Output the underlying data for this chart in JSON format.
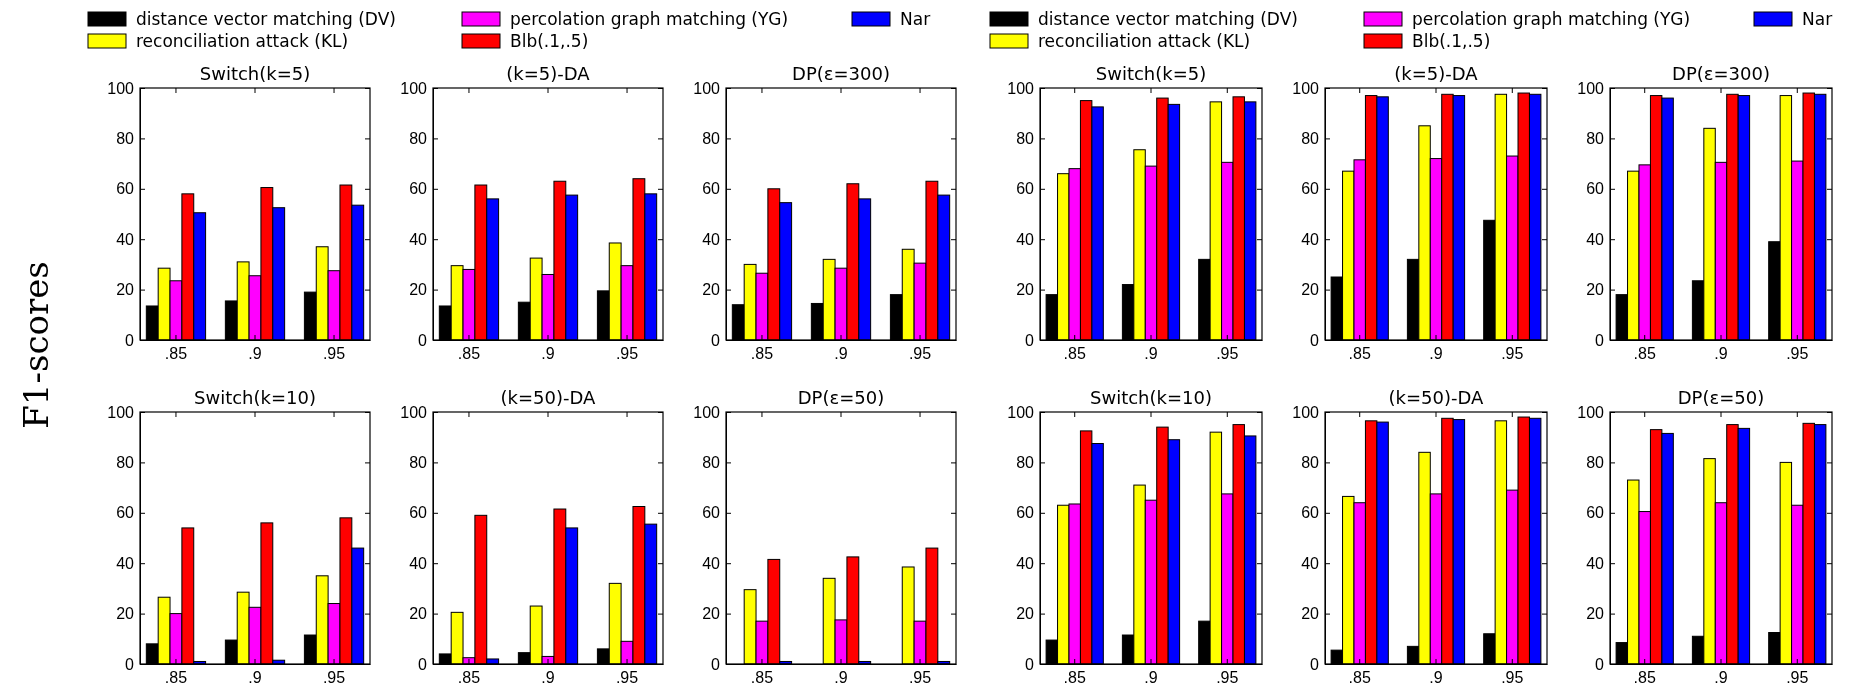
{
  "chart_data": [
    {
      "type": "bar",
      "title": "Switch(k=5)",
      "ylabel": "F1-scores",
      "categories": [
        ".85",
        ".9",
        ".95"
      ],
      "ylim": [
        0,
        100
      ],
      "yticks": [
        0,
        20,
        40,
        60,
        80,
        100
      ],
      "legend": "top",
      "series": [
        {
          "name": "distance vector matching (DV)",
          "color": "#000000",
          "values": [
            13.5,
            15.5,
            19
          ]
        },
        {
          "name": "reconciliation attack (KL)",
          "color": "#ffff00",
          "values": [
            28.5,
            31,
            37
          ]
        },
        {
          "name": "percolation graph matching (YG)",
          "color": "#ff00ff",
          "values": [
            23.5,
            25.5,
            27.5
          ]
        },
        {
          "name": "Blb(.1,.5)",
          "color": "#ff0000",
          "values": [
            58,
            60.5,
            61.5
          ]
        },
        {
          "name": "Nar",
          "color": "#0000ff",
          "values": [
            50.5,
            52.5,
            53.5
          ]
        }
      ]
    },
    {
      "type": "bar",
      "title": "(k=5)-DA",
      "categories": [
        ".85",
        ".9",
        ".95"
      ],
      "ylim": [
        0,
        100
      ],
      "yticks": [
        0,
        20,
        40,
        60,
        80,
        100
      ],
      "series": [
        {
          "color": "#000000",
          "values": [
            13.5,
            15,
            19.5
          ]
        },
        {
          "color": "#ffff00",
          "values": [
            29.5,
            32.5,
            38.5
          ]
        },
        {
          "color": "#ff00ff",
          "values": [
            28,
            26,
            29.5
          ]
        },
        {
          "color": "#ff0000",
          "values": [
            61.5,
            63,
            64
          ]
        },
        {
          "color": "#0000ff",
          "values": [
            56,
            57.5,
            58
          ]
        }
      ]
    },
    {
      "type": "bar",
      "title": "DP(ε=300)",
      "categories": [
        ".85",
        ".9",
        ".95"
      ],
      "ylim": [
        0,
        100
      ],
      "yticks": [
        0,
        20,
        40,
        60,
        80,
        100
      ],
      "series": [
        {
          "color": "#000000",
          "values": [
            14,
            14.5,
            18
          ]
        },
        {
          "color": "#ffff00",
          "values": [
            30,
            32,
            36
          ]
        },
        {
          "color": "#ff00ff",
          "values": [
            26.5,
            28.5,
            30.5
          ]
        },
        {
          "color": "#ff0000",
          "values": [
            60,
            62,
            63
          ]
        },
        {
          "color": "#0000ff",
          "values": [
            54.5,
            56,
            57.5
          ]
        }
      ]
    },
    {
      "type": "bar",
      "title": "Switch(k=5)",
      "categories": [
        ".85",
        ".9",
        ".95"
      ],
      "ylim": [
        0,
        100
      ],
      "yticks": [
        0,
        20,
        40,
        60,
        80,
        100
      ],
      "legend": "top",
      "series": [
        {
          "name": "distance vector matching (DV)",
          "color": "#000000",
          "values": [
            18,
            22,
            32
          ]
        },
        {
          "name": "reconciliation attack (KL)",
          "color": "#ffff00",
          "values": [
            66,
            75.5,
            94.5
          ]
        },
        {
          "name": "percolation graph matching (YG)",
          "color": "#ff00ff",
          "values": [
            68,
            69,
            70.5
          ]
        },
        {
          "name": "Blb(.1,.5)",
          "color": "#ff0000",
          "values": [
            95,
            96,
            96.5
          ]
        },
        {
          "name": "Nar",
          "color": "#0000ff",
          "values": [
            92.5,
            93.5,
            94.5
          ]
        }
      ]
    },
    {
      "type": "bar",
      "title": "(k=5)-DA",
      "categories": [
        ".85",
        ".9",
        ".95"
      ],
      "ylim": [
        0,
        100
      ],
      "yticks": [
        0,
        20,
        40,
        60,
        80,
        100
      ],
      "series": [
        {
          "color": "#000000",
          "values": [
            25,
            32,
            47.5
          ]
        },
        {
          "color": "#ffff00",
          "values": [
            67,
            85,
            97.5
          ]
        },
        {
          "color": "#ff00ff",
          "values": [
            71.5,
            72,
            73
          ]
        },
        {
          "color": "#ff0000",
          "values": [
            97,
            97.5,
            98
          ]
        },
        {
          "color": "#0000ff",
          "values": [
            96.5,
            97,
            97.5
          ]
        }
      ]
    },
    {
      "type": "bar",
      "title": "DP(ε=300)",
      "categories": [
        ".85",
        ".9",
        ".95"
      ],
      "ylim": [
        0,
        100
      ],
      "yticks": [
        0,
        20,
        40,
        60,
        80,
        100
      ],
      "series": [
        {
          "color": "#000000",
          "values": [
            18,
            23.5,
            39
          ]
        },
        {
          "color": "#ffff00",
          "values": [
            67,
            84,
            97
          ]
        },
        {
          "color": "#ff00ff",
          "values": [
            69.5,
            70.5,
            71
          ]
        },
        {
          "color": "#ff0000",
          "values": [
            97,
            97.5,
            98
          ]
        },
        {
          "color": "#0000ff",
          "values": [
            96,
            97,
            97.5
          ]
        }
      ]
    },
    {
      "type": "bar",
      "title": "Switch(k=10)",
      "categories": [
        ".85",
        ".9",
        ".95"
      ],
      "ylim": [
        0,
        100
      ],
      "yticks": [
        0,
        20,
        40,
        60,
        80,
        100
      ],
      "series": [
        {
          "color": "#000000",
          "values": [
            8,
            9.5,
            11.5
          ]
        },
        {
          "color": "#ffff00",
          "values": [
            26.5,
            28.5,
            35
          ]
        },
        {
          "color": "#ff00ff",
          "values": [
            20,
            22.5,
            24
          ]
        },
        {
          "color": "#ff0000",
          "values": [
            54,
            56,
            58
          ]
        },
        {
          "color": "#0000ff",
          "values": [
            1,
            1.5,
            46
          ]
        }
      ]
    },
    {
      "type": "bar",
      "title": "(k=50)-DA",
      "categories": [
        ".85",
        ".9",
        ".95"
      ],
      "ylim": [
        0,
        100
      ],
      "yticks": [
        0,
        20,
        40,
        60,
        80,
        100
      ],
      "series": [
        {
          "color": "#000000",
          "values": [
            4,
            4.5,
            6
          ]
        },
        {
          "color": "#ffff00",
          "values": [
            20.5,
            23,
            32
          ]
        },
        {
          "color": "#ff00ff",
          "values": [
            2.5,
            3,
            9
          ]
        },
        {
          "color": "#ff0000",
          "values": [
            59,
            61.5,
            62.5
          ]
        },
        {
          "color": "#0000ff",
          "values": [
            2,
            54,
            55.5
          ]
        }
      ]
    },
    {
      "type": "bar",
      "title": "DP(ε=50)",
      "categories": [
        ".85",
        ".9",
        ".95"
      ],
      "ylim": [
        0,
        100
      ],
      "yticks": [
        0,
        20,
        40,
        60,
        80,
        100
      ],
      "series": [
        {
          "values": [
            null,
            null,
            null
          ]
        },
        {
          "color": "#ffff00",
          "values": [
            29.5,
            34,
            38.5
          ]
        },
        {
          "color": "#ff00ff",
          "values": [
            17,
            17.5,
            17
          ]
        },
        {
          "color": "#ff0000",
          "values": [
            41.5,
            42.5,
            46
          ]
        },
        {
          "color": "#0000ff",
          "values": [
            1,
            1,
            1
          ]
        }
      ]
    },
    {
      "type": "bar",
      "title": "Switch(k=10)",
      "categories": [
        ".85",
        ".9",
        ".95"
      ],
      "ylim": [
        0,
        100
      ],
      "yticks": [
        0,
        20,
        40,
        60,
        80,
        100
      ],
      "series": [
        {
          "color": "#000000",
          "values": [
            9.5,
            11.5,
            17
          ]
        },
        {
          "color": "#ffff00",
          "values": [
            63,
            71,
            92
          ]
        },
        {
          "color": "#ff00ff",
          "values": [
            63.5,
            65,
            67.5
          ]
        },
        {
          "color": "#ff0000",
          "values": [
            92.5,
            94,
            95
          ]
        },
        {
          "color": "#0000ff",
          "values": [
            87.5,
            89,
            90.5
          ]
        }
      ]
    },
    {
      "type": "bar",
      "title": "(k=50)-DA",
      "categories": [
        ".85",
        ".9",
        ".95"
      ],
      "ylim": [
        0,
        100
      ],
      "yticks": [
        0,
        20,
        40,
        60,
        80,
        100
      ],
      "series": [
        {
          "color": "#000000",
          "values": [
            5.5,
            7,
            12
          ]
        },
        {
          "color": "#ffff00",
          "values": [
            66.5,
            84,
            96.5
          ]
        },
        {
          "color": "#ff00ff",
          "values": [
            64,
            67.5,
            69
          ]
        },
        {
          "color": "#ff0000",
          "values": [
            96.5,
            97.5,
            98
          ]
        },
        {
          "color": "#0000ff",
          "values": [
            96,
            97,
            97.5
          ]
        }
      ]
    },
    {
      "type": "bar",
      "title": "DP(ε=50)",
      "categories": [
        ".85",
        ".9",
        ".95"
      ],
      "ylim": [
        0,
        100
      ],
      "yticks": [
        0,
        20,
        40,
        60,
        80,
        100
      ],
      "series": [
        {
          "color": "#000000",
          "values": [
            8.5,
            11,
            12.5
          ]
        },
        {
          "color": "#ffff00",
          "values": [
            73,
            81.5,
            80
          ]
        },
        {
          "color": "#ff00ff",
          "values": [
            60.5,
            64,
            63
          ]
        },
        {
          "color": "#ff0000",
          "values": [
            93,
            95,
            95.5
          ]
        },
        {
          "color": "#0000ff",
          "values": [
            91.5,
            93.5,
            95
          ]
        }
      ]
    }
  ]
}
